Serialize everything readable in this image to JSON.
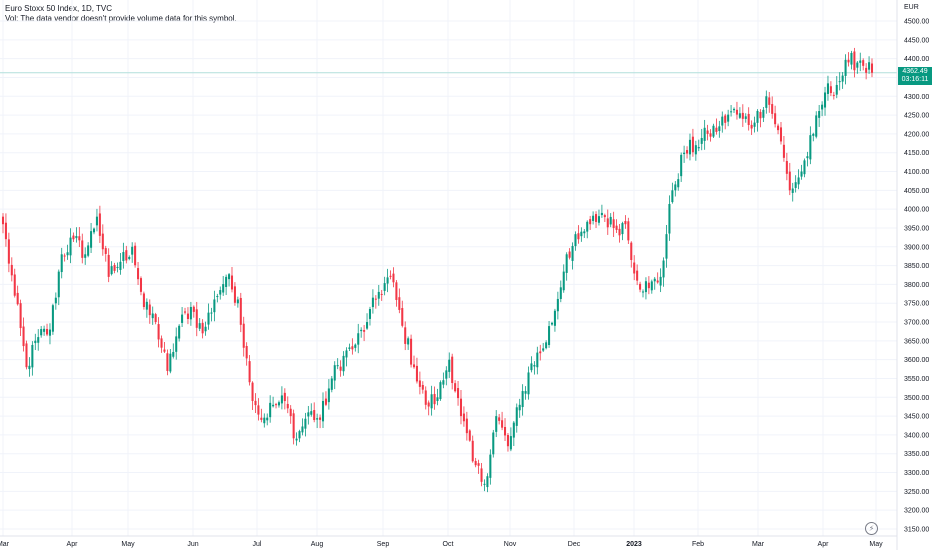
{
  "header": {
    "title": "Euro Stoxx 50 Index, 1D, TVC",
    "volume_note": "Vol: The data vendor doesn't provide volume data for this symbol."
  },
  "currency": "EUR",
  "last_price_label": "4362.49",
  "countdown_label": "03:16:11",
  "colors": {
    "up": "#089981",
    "down": "#f23645",
    "priceline": "#b2dfdb",
    "tag": "#089981"
  },
  "icons": [
    "lightning-icon"
  ],
  "chart_data": {
    "type": "candlestick",
    "ylim": [
      3150,
      4500
    ],
    "ticks_y": [
      "4500.00",
      "4450.00",
      "4400.00",
      "4350.00",
      "4300.00",
      "4250.00",
      "4200.00",
      "4150.00",
      "4100.00",
      "4050.00",
      "4000.00",
      "3950.00",
      "3900.00",
      "3850.00",
      "3800.00",
      "3750.00",
      "3700.00",
      "3650.00",
      "3600.00",
      "3550.00",
      "3500.00",
      "3450.00",
      "3400.00",
      "3350.00",
      "3300.00",
      "3250.00",
      "3200.00",
      "3150.00"
    ],
    "ticks_x": [
      "Mar",
      "Apr",
      "May",
      "Jun",
      "Jul",
      "Aug",
      "Sep",
      "Oct",
      "Nov",
      "Dec",
      "2023",
      "Feb",
      "Mar",
      "Apr",
      "May"
    ],
    "last_price": 4362.49,
    "anchors": [
      [
        0,
        3960
      ],
      [
        4,
        3770
      ],
      [
        8,
        3580
      ],
      [
        12,
        3660
      ],
      [
        16,
        3680
      ],
      [
        20,
        3880
      ],
      [
        24,
        3920
      ],
      [
        28,
        3880
      ],
      [
        32,
        3980
      ],
      [
        36,
        3820
      ],
      [
        40,
        3860
      ],
      [
        44,
        3900
      ],
      [
        48,
        3740
      ],
      [
        52,
        3700
      ],
      [
        56,
        3570
      ],
      [
        60,
        3690
      ],
      [
        64,
        3740
      ],
      [
        68,
        3670
      ],
      [
        72,
        3760
      ],
      [
        76,
        3820
      ],
      [
        80,
        3760
      ],
      [
        84,
        3540
      ],
      [
        88,
        3440
      ],
      [
        92,
        3480
      ],
      [
        96,
        3490
      ],
      [
        100,
        3390
      ],
      [
        104,
        3460
      ],
      [
        108,
        3440
      ],
      [
        112,
        3550
      ],
      [
        116,
        3610
      ],
      [
        120,
        3640
      ],
      [
        124,
        3700
      ],
      [
        128,
        3780
      ],
      [
        132,
        3820
      ],
      [
        136,
        3690
      ],
      [
        140,
        3580
      ],
      [
        144,
        3480
      ],
      [
        148,
        3500
      ],
      [
        152,
        3600
      ],
      [
        156,
        3450
      ],
      [
        160,
        3330
      ],
      [
        164,
        3270
      ],
      [
        168,
        3450
      ],
      [
        172,
        3370
      ],
      [
        176,
        3480
      ],
      [
        180,
        3590
      ],
      [
        184,
        3630
      ],
      [
        188,
        3730
      ],
      [
        192,
        3880
      ],
      [
        196,
        3920
      ],
      [
        200,
        3960
      ],
      [
        204,
        3990
      ],
      [
        208,
        3950
      ],
      [
        212,
        3960
      ],
      [
        216,
        3810
      ],
      [
        220,
        3790
      ],
      [
        224,
        3820
      ],
      [
        228,
        4050
      ],
      [
        232,
        4150
      ],
      [
        236,
        4170
      ],
      [
        240,
        4200
      ],
      [
        244,
        4220
      ],
      [
        248,
        4260
      ],
      [
        252,
        4240
      ],
      [
        256,
        4230
      ],
      [
        260,
        4300
      ],
      [
        264,
        4210
      ],
      [
        268,
        4050
      ],
      [
        272,
        4100
      ],
      [
        276,
        4200
      ],
      [
        280,
        4310
      ],
      [
        284,
        4330
      ],
      [
        288,
        4390
      ],
      [
        292,
        4395
      ],
      [
        296,
        4362.49
      ]
    ],
    "series": [
      {
        "name": "Euro Stoxx 50 Index",
        "values": "daily OHLC (approximated from anchors)"
      }
    ]
  }
}
